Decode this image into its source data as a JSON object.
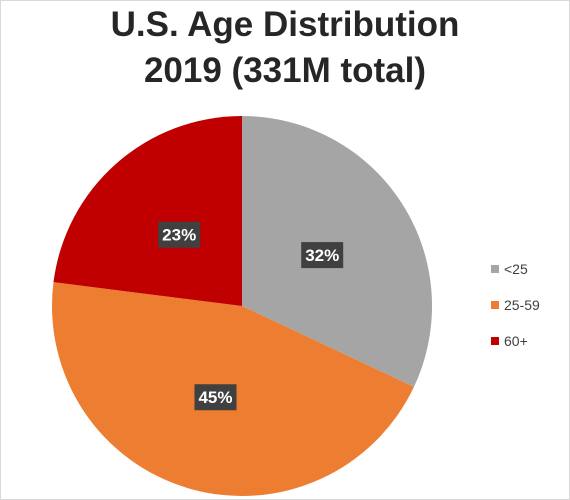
{
  "chart_data": {
    "type": "pie",
    "title_line1": "U.S. Age Distribution",
    "title_line2": "2019 (331M total)",
    "categories": [
      "<25",
      "25-59",
      "60+"
    ],
    "values": [
      32,
      45,
      23
    ],
    "labels": [
      "32%",
      "45%",
      "23%"
    ],
    "colors": [
      "#a5a5a5",
      "#ed7d31",
      "#c00000"
    ],
    "legend_position": "right",
    "start_angle_deg": 0,
    "direction": "clockwise"
  }
}
